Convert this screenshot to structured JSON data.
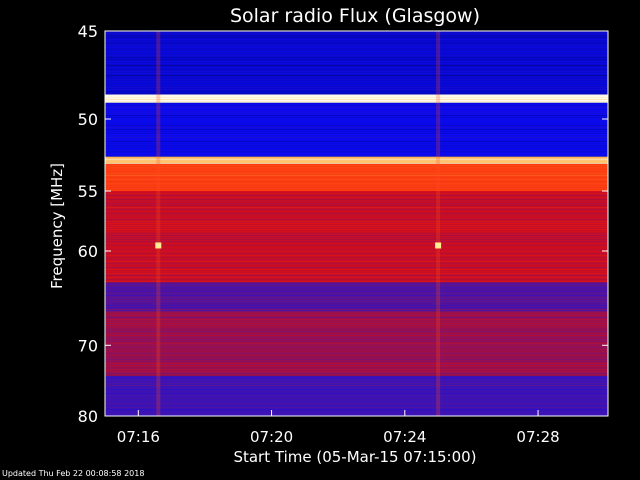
{
  "chart_data": {
    "type": "heatmap",
    "title": "Solar radio Flux (Glasgow)",
    "xlabel": "Start Time (05-Mar-15 07:15:00)",
    "ylabel": "Frequency [MHz]",
    "x_start": "07:15:00",
    "x_range_min": [
      0,
      15.1
    ],
    "x_ticks": [
      {
        "label": "07:16",
        "minutes": 1
      },
      {
        "label": "07:20",
        "minutes": 5
      },
      {
        "label": "07:24",
        "minutes": 9
      },
      {
        "label": "07:28",
        "minutes": 13
      }
    ],
    "ylim": [
      45,
      80
    ],
    "y_ticks": [
      45,
      50,
      55,
      60,
      70,
      80
    ],
    "y_scale": "reciprocal",
    "y_reversed": true,
    "frequency_bands": [
      {
        "from": 45.0,
        "to": 48.5,
        "level": 0.12
      },
      {
        "from": 48.5,
        "to": 49.0,
        "level": 1.0
      },
      {
        "from": 49.0,
        "to": 52.5,
        "level": 0.15
      },
      {
        "from": 52.5,
        "to": 53.0,
        "level": 0.9
      },
      {
        "from": 53.0,
        "to": 55.0,
        "level": 0.68
      },
      {
        "from": 55.0,
        "to": 63.0,
        "level": 0.5
      },
      {
        "from": 63.0,
        "to": 66.0,
        "level": 0.32
      },
      {
        "from": 66.0,
        "to": 74.0,
        "level": 0.42
      },
      {
        "from": 74.0,
        "to": 80.0,
        "level": 0.28
      }
    ],
    "bursts": [
      {
        "minutes": 1.6,
        "freq": 59.5
      },
      {
        "minutes": 10.0,
        "freq": 59.5
      }
    ],
    "grid": false,
    "legend": "none"
  },
  "footer": {
    "updated": "Updated Thu Feb 22 00:08:58 2018"
  }
}
